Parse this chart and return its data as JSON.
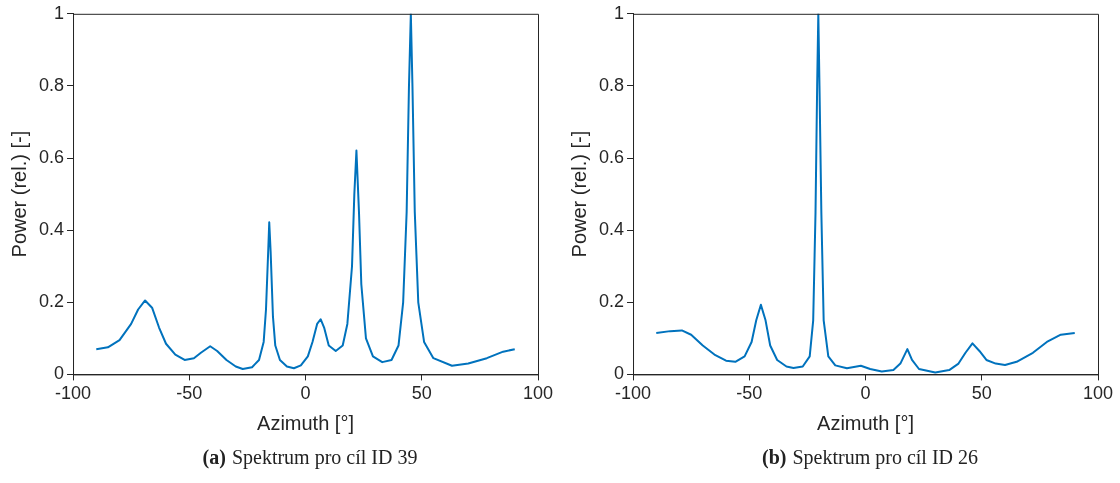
{
  "chart_data": [
    {
      "type": "line",
      "xlabel": "Azimuth [°]",
      "ylabel": "Power (rel.) [-]",
      "xlim": [
        -100,
        100
      ],
      "xticks": [
        -100,
        -50,
        0,
        50,
        100
      ],
      "ylim": [
        0,
        1
      ],
      "yticks": [
        0,
        0.2,
        0.4,
        0.6,
        0.8,
        1
      ],
      "annotations": [
        "(a)",
        "Spektrum pro cíl ID 39"
      ],
      "series": [
        {
          "color": "#0072bd",
          "x": [
            -90,
            -85,
            -80,
            -75,
            -72,
            -69,
            -66,
            -63,
            -60,
            -56,
            -52,
            -48,
            -45,
            -41,
            -38,
            -34,
            -30,
            -27,
            -23,
            -20,
            -18,
            -17,
            -16,
            -15.6,
            -15,
            -14,
            -13,
            -11,
            -8,
            -5,
            -2,
            1,
            3,
            5,
            6.5,
            8,
            10,
            13,
            16,
            18,
            20,
            21,
            21.9,
            23,
            24,
            26,
            29,
            33,
            37,
            40,
            42,
            43.5,
            44.5,
            45.3,
            46,
            47,
            48.5,
            51,
            55,
            63,
            70,
            78,
            85,
            90
          ],
          "values": [
            0.07,
            0.075,
            0.095,
            0.14,
            0.18,
            0.205,
            0.185,
            0.13,
            0.085,
            0.055,
            0.04,
            0.045,
            0.06,
            0.078,
            0.065,
            0.04,
            0.022,
            0.015,
            0.02,
            0.04,
            0.09,
            0.18,
            0.35,
            0.422,
            0.34,
            0.16,
            0.08,
            0.04,
            0.022,
            0.017,
            0.025,
            0.05,
            0.09,
            0.14,
            0.153,
            0.13,
            0.08,
            0.065,
            0.08,
            0.14,
            0.3,
            0.5,
            0.621,
            0.45,
            0.25,
            0.1,
            0.05,
            0.034,
            0.04,
            0.08,
            0.2,
            0.45,
            0.8,
            1.0,
            0.8,
            0.45,
            0.2,
            0.09,
            0.045,
            0.024,
            0.03,
            0.045,
            0.063,
            0.07
          ]
        }
      ]
    },
    {
      "type": "line",
      "xlabel": "Azimuth [°]",
      "ylabel": "Power (rel.) [-]",
      "xlim": [
        -100,
        100
      ],
      "xticks": [
        -100,
        -50,
        0,
        50,
        100
      ],
      "ylim": [
        0,
        1
      ],
      "yticks": [
        0,
        0.2,
        0.4,
        0.6,
        0.8,
        1
      ],
      "annotations": [
        "(b)",
        "Spektrum pro cíl ID 26"
      ],
      "series": [
        {
          "color": "#0072bd",
          "x": [
            -90,
            -84,
            -79,
            -75,
            -70,
            -65,
            -60,
            -56,
            -52,
            -49,
            -47,
            -45,
            -43,
            -41,
            -38,
            -34,
            -31,
            -27,
            -24,
            -22.5,
            -21.5,
            -20.8,
            -20.3,
            -19.8,
            -19,
            -18,
            -16,
            -13,
            -8,
            -2,
            2,
            7,
            12,
            15,
            18,
            20,
            23,
            30,
            36,
            40,
            43,
            46,
            49,
            52,
            56,
            60,
            65,
            72,
            78,
            84,
            90
          ],
          "values": [
            0.115,
            0.12,
            0.122,
            0.11,
            0.08,
            0.055,
            0.038,
            0.035,
            0.05,
            0.09,
            0.15,
            0.193,
            0.15,
            0.08,
            0.04,
            0.022,
            0.018,
            0.022,
            0.05,
            0.15,
            0.45,
            0.8,
            1.0,
            0.8,
            0.45,
            0.15,
            0.05,
            0.025,
            0.017,
            0.024,
            0.015,
            0.008,
            0.012,
            0.03,
            0.07,
            0.04,
            0.015,
            0.005,
            0.012,
            0.03,
            0.06,
            0.086,
            0.065,
            0.04,
            0.03,
            0.026,
            0.035,
            0.06,
            0.09,
            0.11,
            0.115
          ]
        }
      ]
    }
  ]
}
